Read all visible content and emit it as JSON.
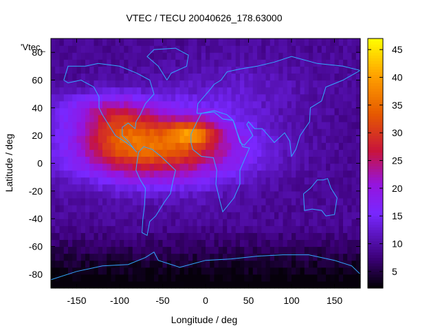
{
  "chart_data": {
    "type": "heatmap",
    "title": "VTEC / TECU 20040626_178.63000",
    "xlabel": "Longitude / deg",
    "ylabel": "Latitude / deg",
    "key_label": "'Vtec_",
    "xlim": [
      -180,
      180
    ],
    "ylim": [
      -90,
      90
    ],
    "xticks": [
      -150,
      -100,
      -50,
      0,
      50,
      100,
      150
    ],
    "yticks": [
      -80,
      -60,
      -40,
      -20,
      0,
      20,
      40,
      60,
      80
    ],
    "colorbar": {
      "range": [
        2,
        47
      ],
      "ticks": [
        5,
        10,
        15,
        20,
        25,
        30,
        35,
        40,
        45
      ],
      "palette": "black-purple-blue-red-orange-yellow"
    },
    "grid": false,
    "features": [
      {
        "name": "peak",
        "lon": -15,
        "lat": 22,
        "value": 46
      },
      {
        "name": "equatorial-anomaly-band",
        "lon_range": [
          -150,
          40
        ],
        "lat_range": [
          -25,
          45
        ],
        "value": 33
      },
      {
        "name": "southern-polar-minimum",
        "lon_range": [
          -180,
          180
        ],
        "lat_range": [
          -90,
          -55
        ],
        "value": 3
      }
    ],
    "overlay": "coastlines"
  },
  "colors": {
    "coastline": "#33aaff",
    "axis": "#000000",
    "background": "#ffffff"
  }
}
